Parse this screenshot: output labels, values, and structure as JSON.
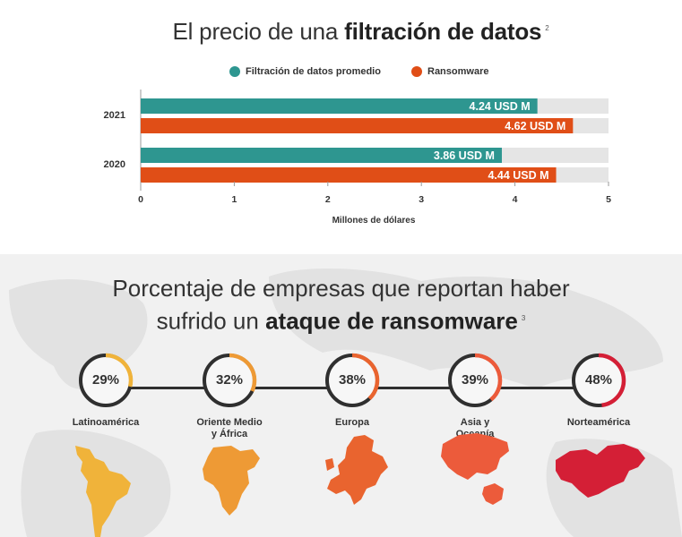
{
  "chart1": {
    "title_regular": "El precio de una ",
    "title_bold": "filtración de datos",
    "title_sup": "2",
    "legend": [
      {
        "label": "Filtración de datos promedio",
        "color": "#2e9690"
      },
      {
        "label": "Ransomware",
        "color": "#e04e17"
      }
    ]
  },
  "chart_data": {
    "type": "bar",
    "orientation": "horizontal",
    "categories": [
      "2021",
      "2020"
    ],
    "series": [
      {
        "name": "Filtración de datos promedio",
        "color": "#2e9690",
        "values": [
          4.24,
          3.86
        ],
        "labels": [
          "4.24 USD M",
          "3.86 USD M"
        ]
      },
      {
        "name": "Ransomware",
        "color": "#e04e17",
        "values": [
          4.62,
          4.44
        ],
        "labels": [
          "4.62 USD M",
          "4.44 USD M"
        ]
      }
    ],
    "xlim": [
      0,
      5
    ],
    "xticks": [
      "0",
      "1",
      "2",
      "3",
      "4",
      "5"
    ],
    "xlabel": "Millones de dólares",
    "track_color": "#e5e5e5"
  },
  "chart2": {
    "title_line1": "Porcentaje de empresas que reportan haber",
    "title_line2_regular": "sufrido un ",
    "title_line2_bold": "ataque de ransomware",
    "title_sup": "3",
    "regions": [
      {
        "name": "Latinoamérica",
        "percent": 29,
        "label": "29%",
        "color": "#f0b33a"
      },
      {
        "name": "Oriente Medio y África",
        "percent": 32,
        "label": "32%",
        "color": "#ee9a35"
      },
      {
        "name": "Europa",
        "percent": 38,
        "label": "38%",
        "color": "#e9642f"
      },
      {
        "name": "Asia y Oceanía",
        "percent": 39,
        "label": "39%",
        "color": "#ec5b3b"
      },
      {
        "name": "Norteamérica",
        "percent": 48,
        "label": "48%",
        "color": "#d41f36"
      }
    ]
  }
}
